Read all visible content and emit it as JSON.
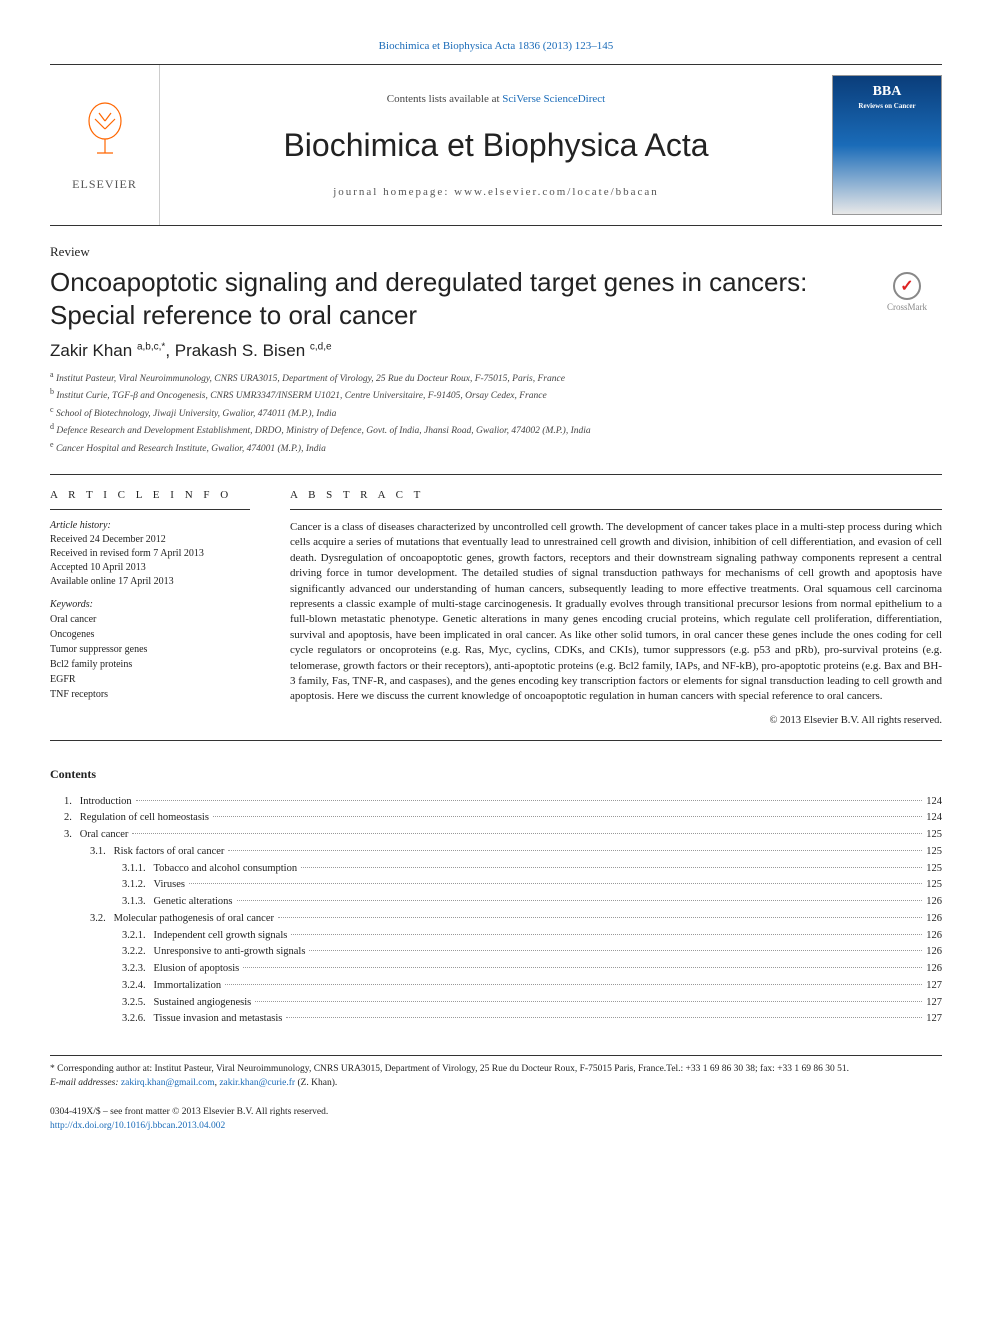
{
  "journal_ref": {
    "prefix": "Biochimica et Biophysica Acta 1836 (2013) 123–145",
    "link_label": "Biochimica et Biophysica Acta 1836 (2013) 123–145"
  },
  "header": {
    "contents_prefix": "Contents lists available at ",
    "contents_link": "SciVerse ScienceDirect",
    "journal_title": "Biochimica et Biophysica Acta",
    "homepage_label": "journal homepage: www.elsevier.com/locate/bbacan",
    "elsevier_text": "ELSEVIER",
    "cover_text": "BBA",
    "cover_sub": "Reviews on Cancer"
  },
  "article": {
    "type": "Review",
    "title": "Oncoapoptotic signaling and deregulated target genes in cancers: Special reference to oral cancer",
    "crossmark": "CrossMark",
    "authors_html": [
      "Zakir Khan ",
      "a,b,c,",
      "*",
      ", Prakash S. Bisen ",
      "c,d,e"
    ]
  },
  "affiliations": [
    {
      "sup": "a",
      "text": " Institut Pasteur, Viral Neuroimmunology, CNRS URA3015, Department of Virology, 25 Rue du Docteur Roux, F-75015, Paris, France"
    },
    {
      "sup": "b",
      "text": " Institut Curie, TGF-β and Oncogenesis, CNRS UMR3347/INSERM U1021, Centre Universitaire, F-91405, Orsay Cedex, France"
    },
    {
      "sup": "c",
      "text": " School of Biotechnology, Jiwaji University, Gwalior, 474011 (M.P.), India"
    },
    {
      "sup": "d",
      "text": " Defence Research and Development Establishment, DRDO, Ministry of Defence, Govt. of India, Jhansi Road, Gwalior, 474002 (M.P.), India"
    },
    {
      "sup": "e",
      "text": " Cancer Hospital and Research Institute, Gwalior, 474001 (M.P.), India"
    }
  ],
  "info": {
    "heading": "A R T I C L E   I N F O",
    "history_label": "Article history:",
    "history": [
      "Received 24 December 2012",
      "Received in revised form 7 April 2013",
      "Accepted 10 April 2013",
      "Available online 17 April 2013"
    ],
    "keywords_label": "Keywords:",
    "keywords": [
      "Oral cancer",
      "Oncogenes",
      "Tumor suppressor genes",
      "Bcl2 family proteins",
      "EGFR",
      "TNF receptors"
    ]
  },
  "abstract": {
    "heading": "A B S T R A C T",
    "text": "Cancer is a class of diseases characterized by uncontrolled cell growth. The development of cancer takes place in a multi-step process during which cells acquire a series of mutations that eventually lead to unrestrained cell growth and division, inhibition of cell differentiation, and evasion of cell death. Dysregulation of oncoapoptotic genes, growth factors, receptors and their downstream signaling pathway components represent a central driving force in tumor development. The detailed studies of signal transduction pathways for mechanisms of cell growth and apoptosis have significantly advanced our understanding of human cancers, subsequently leading to more effective treatments. Oral squamous cell carcinoma represents a classic example of multi-stage carcinogenesis. It gradually evolves through transitional precursor lesions from normal epithelium to a full-blown metastatic phenotype. Genetic alterations in many genes encoding crucial proteins, which regulate cell proliferation, differentiation, survival and apoptosis, have been implicated in oral cancer. As like other solid tumors, in oral cancer these genes include the ones coding for cell cycle regulators or oncoproteins (e.g. Ras, Myc, cyclins, CDKs, and CKIs), tumor suppressors (e.g. p53 and pRb), pro-survival proteins (e.g. telomerase, growth factors or their receptors), anti-apoptotic proteins (e.g. Bcl2 family, IAPs, and NF-kB), pro-apoptotic proteins (e.g. Bax and BH-3 family, Fas, TNF-R, and caspases), and the genes encoding key transcription factors or elements for signal transduction leading to cell growth and apoptosis. Here we discuss the current knowledge of oncoapoptotic regulation in human cancers with special reference to oral cancers.",
    "copyright": "© 2013 Elsevier B.V. All rights reserved."
  },
  "contents": {
    "heading": "Contents",
    "items": [
      {
        "indent": 0,
        "num": "1.",
        "label": "Introduction",
        "page": "124"
      },
      {
        "indent": 0,
        "num": "2.",
        "label": "Regulation of cell homeostasis",
        "page": "124"
      },
      {
        "indent": 0,
        "num": "3.",
        "label": "Oral cancer",
        "page": "125"
      },
      {
        "indent": 1,
        "num": "3.1.",
        "label": "Risk factors of oral cancer",
        "page": "125"
      },
      {
        "indent": 2,
        "num": "3.1.1.",
        "label": "Tobacco and alcohol consumption",
        "page": "125"
      },
      {
        "indent": 2,
        "num": "3.1.2.",
        "label": "Viruses",
        "page": "125"
      },
      {
        "indent": 2,
        "num": "3.1.3.",
        "label": "Genetic alterations",
        "page": "126"
      },
      {
        "indent": 1,
        "num": "3.2.",
        "label": "Molecular pathogenesis of oral cancer",
        "page": "126"
      },
      {
        "indent": 2,
        "num": "3.2.1.",
        "label": "Independent cell growth signals",
        "page": "126"
      },
      {
        "indent": 2,
        "num": "3.2.2.",
        "label": "Unresponsive to anti-growth signals",
        "page": "126"
      },
      {
        "indent": 2,
        "num": "3.2.3.",
        "label": "Elusion of apoptosis",
        "page": "126"
      },
      {
        "indent": 2,
        "num": "3.2.4.",
        "label": "Immortalization",
        "page": "127"
      },
      {
        "indent": 2,
        "num": "3.2.5.",
        "label": "Sustained angiogenesis",
        "page": "127"
      },
      {
        "indent": 2,
        "num": "3.2.6.",
        "label": "Tissue invasion and metastasis",
        "page": "127"
      }
    ]
  },
  "footnotes": {
    "corresponding": "* Corresponding author at: Institut Pasteur, Viral Neuroimmunology, CNRS URA3015, Department of Virology, 25 Rue du Docteur Roux, F-75015 Paris, France.Tel.: +33 1 69 86 30 38; fax: +33 1 69 86 30 51.",
    "email_label": "E-mail addresses: ",
    "emails": [
      "zakirq.khan@gmail.com",
      "zakir.khan@curie.fr"
    ],
    "email_suffix": " (Z. Khan)."
  },
  "footer": {
    "line1": "0304-419X/$ – see front matter © 2013 Elsevier B.V. All rights reserved.",
    "doi": "http://dx.doi.org/10.1016/j.bbcan.2013.04.002"
  },
  "colors": {
    "link": "#1a6bb8",
    "text": "#222222",
    "elsevier_orange": "#ff6600"
  }
}
